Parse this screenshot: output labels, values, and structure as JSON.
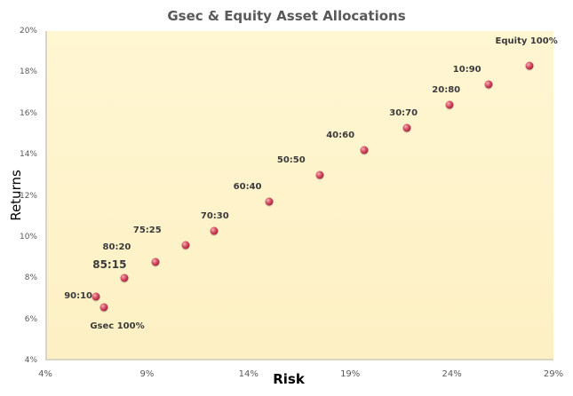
{
  "chart_data": {
    "type": "scatter",
    "title": "Gsec & Equity Asset Allocations",
    "xlabel": "Risk",
    "ylabel": "Returns",
    "xlim": [
      4,
      29
    ],
    "ylim": [
      4,
      20
    ],
    "x_ticks": [
      "4%",
      "9%",
      "14%",
      "19%",
      "24%",
      "29%"
    ],
    "y_ticks": [
      "4%",
      "6%",
      "8%",
      "10%",
      "12%",
      "14%",
      "16%",
      "18%",
      "20%"
    ],
    "grid": false,
    "legend": null,
    "points": [
      {
        "label": "Gsec 100%",
        "x": 6.9,
        "y": 6.6
      },
      {
        "label": "90:10",
        "x": 6.5,
        "y": 7.1
      },
      {
        "label": "85:15",
        "x": 7.9,
        "y": 8.0
      },
      {
        "label": "80:20",
        "x": 9.4,
        "y": 8.8
      },
      {
        "label": "75:25",
        "x": 10.9,
        "y": 9.6
      },
      {
        "label": "70:30",
        "x": 12.3,
        "y": 10.3
      },
      {
        "label": "60:40",
        "x": 15.0,
        "y": 11.7
      },
      {
        "label": "50:50",
        "x": 17.5,
        "y": 13.0
      },
      {
        "label": "40:60",
        "x": 19.7,
        "y": 14.2
      },
      {
        "label": "30:70",
        "x": 21.8,
        "y": 15.3
      },
      {
        "label": "20:80",
        "x": 23.9,
        "y": 16.4
      },
      {
        "label": "10:90",
        "x": 25.8,
        "y": 17.4
      },
      {
        "label": "Equity 100%",
        "x": 27.8,
        "y": 18.3
      }
    ],
    "colors": {
      "plot_background": "#fff2c8",
      "marker": "#c23a50",
      "text": "#595959"
    }
  }
}
